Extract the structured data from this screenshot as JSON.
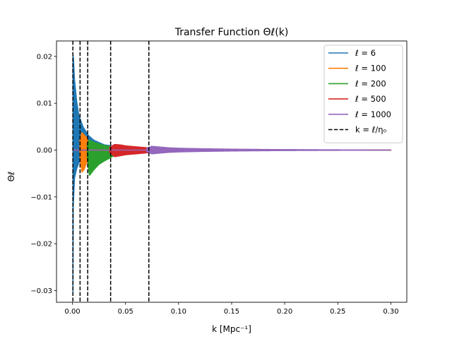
{
  "chart_data": {
    "type": "line",
    "title": "Transfer Function Θℓ(k)",
    "xlabel": "k [Mpc⁻¹]",
    "ylabel": "Θℓ",
    "xlim": [
      -0.015,
      0.315
    ],
    "ylim": [
      -0.0325,
      0.0233
    ],
    "x_ticks": [
      0.0,
      0.05,
      0.1,
      0.15,
      0.2,
      0.25,
      0.3
    ],
    "x_tick_labels": [
      "0.00",
      "0.05",
      "0.10",
      "0.15",
      "0.20",
      "0.25",
      "0.30"
    ],
    "y_ticks": [
      -0.03,
      -0.02,
      -0.01,
      0.0,
      0.01,
      0.02
    ],
    "y_tick_labels": [
      "−0.03",
      "−0.02",
      "−0.01",
      "0.00",
      "0.01",
      "0.02"
    ],
    "grid": false,
    "legend_position": "upper-right",
    "series": [
      {
        "name": "ℓ = 6",
        "ell": 6,
        "color": "#1f77b4",
        "envelope": {
          "k_min": 0.0,
          "k_max": 0.3,
          "k_start": 0.0005,
          "min_at_start": -0.0308,
          "max_at_start": 0.0205,
          "upper": [
            [
              0.0005,
              0.0205
            ],
            [
              0.001,
              0.0195
            ],
            [
              0.002,
              0.015
            ],
            [
              0.004,
              0.0105
            ],
            [
              0.006,
              0.0075
            ],
            [
              0.01,
              0.005
            ],
            [
              0.015,
              0.0032
            ],
            [
              0.02,
              0.0022
            ],
            [
              0.03,
              0.0012
            ],
            [
              0.05,
              0.0007
            ],
            [
              0.1,
              0.0003
            ],
            [
              0.2,
              0.00015
            ],
            [
              0.3,
              0.0001
            ]
          ],
          "lower": [
            [
              0.0005,
              -0.0308
            ],
            [
              0.0008,
              -0.012
            ],
            [
              0.002,
              -0.006
            ],
            [
              0.004,
              -0.004
            ],
            [
              0.006,
              -0.0028
            ],
            [
              0.01,
              -0.0018
            ],
            [
              0.015,
              -0.0012
            ],
            [
              0.02,
              -0.0009
            ],
            [
              0.03,
              -0.0006
            ],
            [
              0.05,
              -0.0004
            ],
            [
              0.1,
              -0.0002
            ],
            [
              0.2,
              -0.0001
            ],
            [
              0.3,
              -0.0001
            ]
          ]
        }
      },
      {
        "name": "ℓ = 100",
        "ell": 100,
        "color": "#ff7f0e",
        "envelope": {
          "k_min": 0.0,
          "k_max": 0.3,
          "k_start": 0.007,
          "upper": [
            [
              0.007,
              0.0022
            ],
            [
              0.009,
              0.0038
            ],
            [
              0.011,
              0.0033
            ],
            [
              0.013,
              0.0028
            ],
            [
              0.015,
              0.0018
            ],
            [
              0.02,
              0.001
            ],
            [
              0.03,
              0.0006
            ],
            [
              0.05,
              0.0003
            ],
            [
              0.1,
              0.00015
            ],
            [
              0.3,
              0.0001
            ]
          ],
          "lower": [
            [
              0.007,
              -0.0015
            ],
            [
              0.009,
              -0.0048
            ],
            [
              0.011,
              -0.0042
            ],
            [
              0.013,
              -0.003
            ],
            [
              0.015,
              -0.002
            ],
            [
              0.02,
              -0.001
            ],
            [
              0.03,
              -0.0006
            ],
            [
              0.05,
              -0.0003
            ],
            [
              0.1,
              -0.00015
            ],
            [
              0.3,
              -0.0001
            ]
          ]
        }
      },
      {
        "name": "ℓ = 200",
        "ell": 200,
        "color": "#2ca02c",
        "envelope": {
          "k_min": 0.0,
          "k_max": 0.3,
          "k_start": 0.014,
          "upper": [
            [
              0.014,
              0.0015
            ],
            [
              0.016,
              0.0022
            ],
            [
              0.02,
              0.0018
            ],
            [
              0.025,
              0.0014
            ],
            [
              0.03,
              0.0011
            ],
            [
              0.035,
              0.0009
            ],
            [
              0.04,
              0.0007
            ],
            [
              0.05,
              0.0004
            ],
            [
              0.07,
              0.0003
            ],
            [
              0.1,
              0.0002
            ],
            [
              0.3,
              0.0001
            ]
          ],
          "lower": [
            [
              0.014,
              -0.0015
            ],
            [
              0.016,
              -0.0055
            ],
            [
              0.02,
              -0.0043
            ],
            [
              0.025,
              -0.0031
            ],
            [
              0.03,
              -0.0024
            ],
            [
              0.035,
              -0.0018
            ],
            [
              0.04,
              -0.0012
            ],
            [
              0.05,
              -0.0007
            ],
            [
              0.07,
              -0.0004
            ],
            [
              0.1,
              -0.0002
            ],
            [
              0.3,
              -0.0001
            ]
          ]
        }
      },
      {
        "name": "ℓ = 500",
        "ell": 500,
        "color": "#d62728",
        "envelope": {
          "k_min": 0.0,
          "k_max": 0.3,
          "k_start": 0.035,
          "upper": [
            [
              0.035,
              0.0006
            ],
            [
              0.04,
              0.0013
            ],
            [
              0.045,
              0.0012
            ],
            [
              0.05,
              0.001
            ],
            [
              0.06,
              0.0008
            ],
            [
              0.07,
              0.0006
            ],
            [
              0.08,
              0.0004
            ],
            [
              0.1,
              0.0003
            ],
            [
              0.15,
              0.00015
            ],
            [
              0.3,
              0.0001
            ]
          ],
          "lower": [
            [
              0.035,
              -0.0006
            ],
            [
              0.04,
              -0.0015
            ],
            [
              0.045,
              -0.0013
            ],
            [
              0.05,
              -0.0011
            ],
            [
              0.06,
              -0.0009
            ],
            [
              0.07,
              -0.0007
            ],
            [
              0.08,
              -0.0005
            ],
            [
              0.1,
              -0.0003
            ],
            [
              0.15,
              -0.00015
            ],
            [
              0.3,
              -0.0001
            ]
          ]
        }
      },
      {
        "name": "ℓ = 1000",
        "ell": 1000,
        "color": "#9467bd",
        "envelope": {
          "k_min": 0.0,
          "k_max": 0.3,
          "k_start": 0.07,
          "upper": [
            [
              0.07,
              0.0004
            ],
            [
              0.075,
              0.0009
            ],
            [
              0.08,
              0.0008
            ],
            [
              0.09,
              0.0006
            ],
            [
              0.1,
              0.0005
            ],
            [
              0.12,
              0.0004
            ],
            [
              0.15,
              0.0003
            ],
            [
              0.2,
              0.0002
            ],
            [
              0.25,
              0.00015
            ],
            [
              0.3,
              0.0001
            ]
          ],
          "lower": [
            [
              0.07,
              -0.0004
            ],
            [
              0.075,
              -0.0009
            ],
            [
              0.08,
              -0.0008
            ],
            [
              0.09,
              -0.0006
            ],
            [
              0.1,
              -0.0005
            ],
            [
              0.12,
              -0.0004
            ],
            [
              0.15,
              -0.0003
            ],
            [
              0.2,
              -0.0002
            ],
            [
              0.25,
              -0.00015
            ],
            [
              0.3,
              -0.0001
            ]
          ]
        }
      }
    ],
    "vlines": {
      "name": "k = ℓ/η₀",
      "color": "#000000",
      "style": "dashed",
      "x": [
        0.000432,
        0.0072,
        0.0144,
        0.036,
        0.072
      ]
    },
    "legend": {
      "entries": [
        {
          "label": "ℓ = 6",
          "color": "#1f77b4",
          "style": "solid"
        },
        {
          "label": "ℓ = 100",
          "color": "#ff7f0e",
          "style": "solid"
        },
        {
          "label": "ℓ = 200",
          "color": "#2ca02c",
          "style": "solid"
        },
        {
          "label": "ℓ = 500",
          "color": "#d62728",
          "style": "solid"
        },
        {
          "label": "ℓ = 1000",
          "color": "#9467bd",
          "style": "solid"
        },
        {
          "label": "k = ℓ/η₀",
          "color": "#000000",
          "style": "dashed"
        }
      ]
    }
  }
}
